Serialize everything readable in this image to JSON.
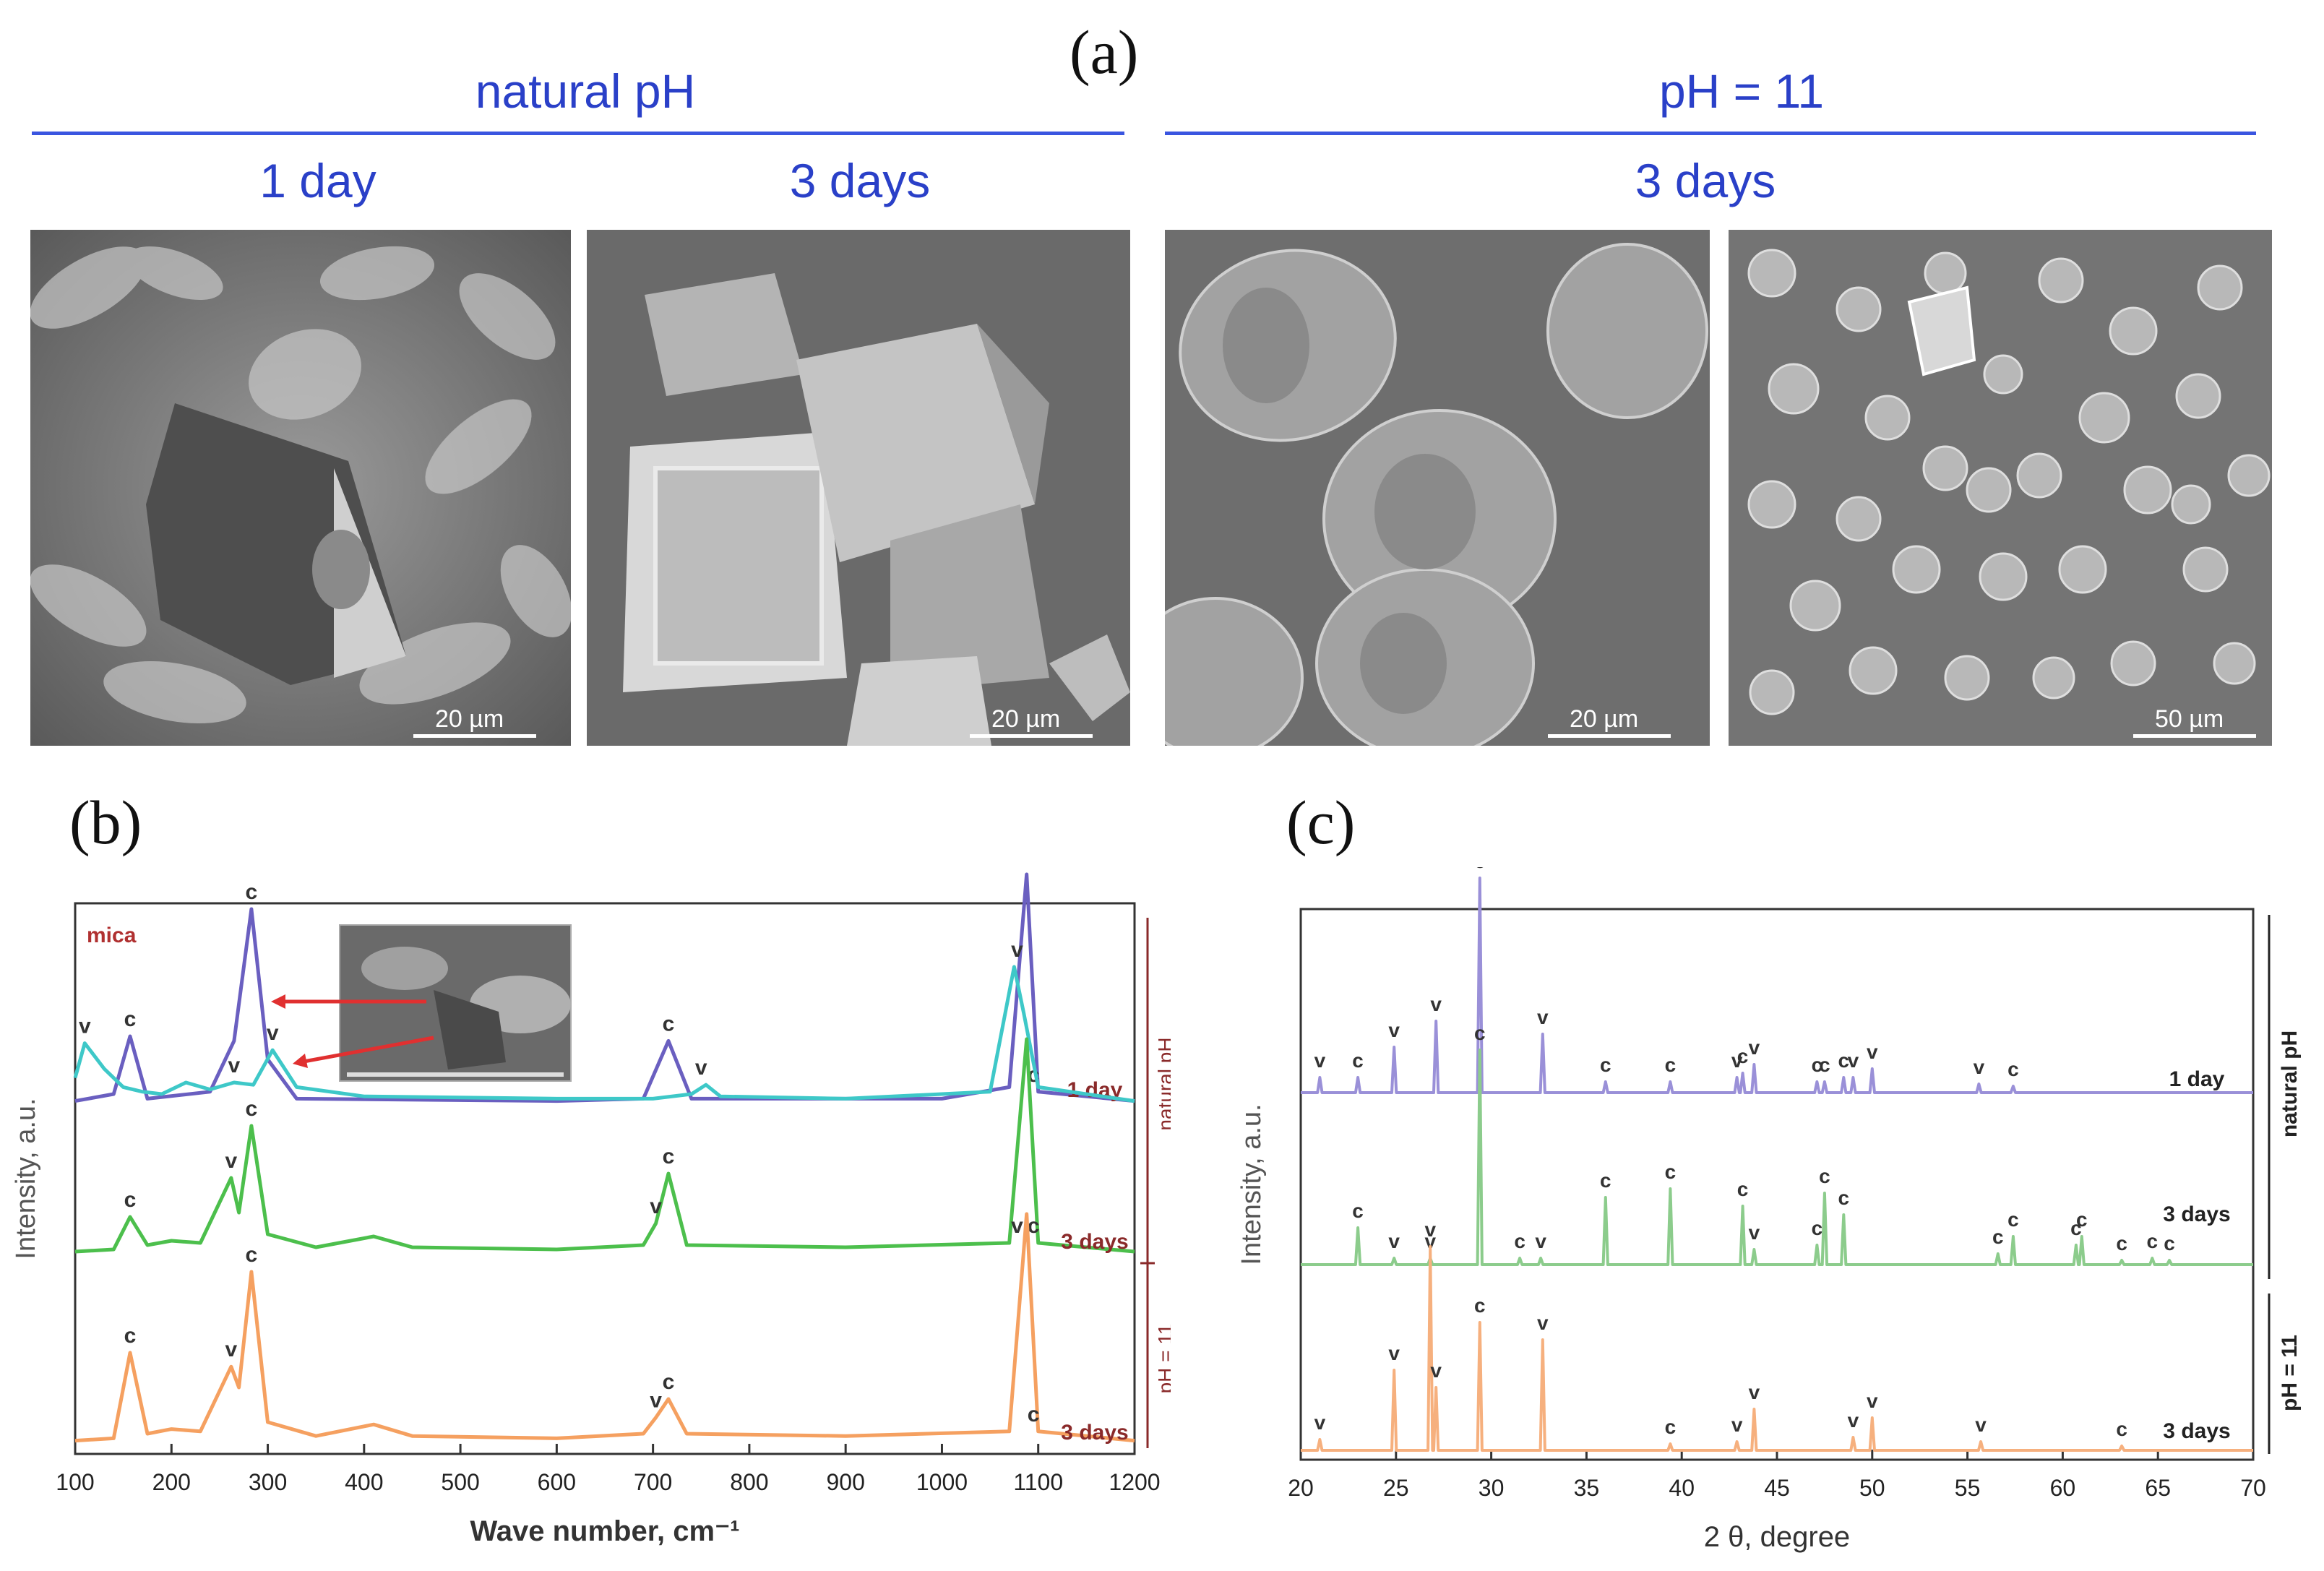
{
  "figure": {
    "label_a": "(a)",
    "label_b": "(b)",
    "label_c": "(c)",
    "group_natural": "natural pH",
    "group_ph11": "pH = 11",
    "col_1day": "1 day",
    "col_3days_a": "3 days",
    "col_3days_b": "3 days",
    "scale_1": "20 µm",
    "scale_2": "20 µm",
    "scale_3": "20 µm",
    "scale_4": "50 µm"
  },
  "chart_data": [
    {
      "type": "line",
      "panel": "(b)",
      "xlabel": "Wave number, cm⁻¹",
      "ylabel": "Intensity, a.u.",
      "xlim": [
        100,
        1200
      ],
      "xticks": [
        100,
        200,
        300,
        400,
        500,
        600,
        700,
        800,
        900,
        1000,
        1100,
        1200
      ],
      "inset_label": "mica",
      "group_labels": [
        "natural pH",
        "pH = 11"
      ],
      "series": [
        {
          "name": "1 day",
          "color": "#6a5fc0",
          "x": [
            100,
            140,
            157,
            175,
            240,
            265,
            283,
            300,
            330,
            600,
            690,
            716,
            740,
            1000,
            1070,
            1088,
            1100,
            1200
          ],
          "y": [
            0.02,
            0.05,
            0.3,
            0.03,
            0.06,
            0.28,
            0.85,
            0.2,
            0.03,
            0.02,
            0.03,
            0.28,
            0.03,
            0.03,
            0.08,
            1.0,
            0.06,
            0.02
          ],
          "peaks": [
            {
              "x": 157,
              "label": "c"
            },
            {
              "x": 283,
              "label": "c"
            },
            {
              "x": 716,
              "label": "c"
            },
            {
              "x": 1095,
              "label": "c"
            }
          ]
        },
        {
          "name": "1 day",
          "color": "#3ec8c8",
          "x": [
            100,
            110,
            130,
            150,
            170,
            190,
            215,
            240,
            265,
            285,
            305,
            330,
            400,
            600,
            700,
            740,
            755,
            770,
            900,
            1050,
            1075,
            1085,
            1100,
            1200
          ],
          "y": [
            0.12,
            0.27,
            0.16,
            0.08,
            0.06,
            0.05,
            0.1,
            0.07,
            0.1,
            0.09,
            0.24,
            0.08,
            0.04,
            0.03,
            0.03,
            0.05,
            0.09,
            0.04,
            0.03,
            0.06,
            0.6,
            0.4,
            0.08,
            0.02
          ],
          "peaks": [
            {
              "x": 110,
              "label": "v"
            },
            {
              "x": 265,
              "label": "v"
            },
            {
              "x": 305,
              "label": "v"
            },
            {
              "x": 750,
              "label": "v"
            },
            {
              "x": 1078,
              "label": "v"
            }
          ]
        },
        {
          "name": "3 days",
          "color": "#4cbf4c",
          "x": [
            100,
            140,
            157,
            175,
            200,
            230,
            262,
            270,
            283,
            300,
            350,
            410,
            450,
            600,
            690,
            703,
            716,
            735,
            900,
            1070,
            1088,
            1100,
            1200
          ],
          "y": [
            0.02,
            0.03,
            0.18,
            0.05,
            0.07,
            0.06,
            0.36,
            0.2,
            0.6,
            0.1,
            0.04,
            0.09,
            0.04,
            0.03,
            0.05,
            0.15,
            0.38,
            0.05,
            0.04,
            0.06,
            1.0,
            0.06,
            0.02
          ],
          "peaks": [
            {
              "x": 157,
              "label": "c"
            },
            {
              "x": 262,
              "label": "v"
            },
            {
              "x": 283,
              "label": "c"
            },
            {
              "x": 703,
              "label": "v"
            },
            {
              "x": 716,
              "label": "c"
            },
            {
              "x": 1078,
              "label": "v"
            },
            {
              "x": 1095,
              "label": "c"
            }
          ]
        },
        {
          "name": "3 days",
          "color": "#f5a060",
          "x": [
            100,
            140,
            157,
            175,
            200,
            230,
            262,
            270,
            283,
            300,
            350,
            410,
            450,
            600,
            690,
            703,
            716,
            735,
            900,
            1070,
            1088,
            1100,
            1200
          ],
          "y": [
            0.02,
            0.03,
            0.4,
            0.05,
            0.07,
            0.06,
            0.34,
            0.25,
            0.75,
            0.1,
            0.04,
            0.09,
            0.04,
            0.03,
            0.05,
            0.12,
            0.2,
            0.05,
            0.04,
            0.06,
            1.0,
            0.06,
            0.02
          ],
          "peaks": [
            {
              "x": 157,
              "label": "c"
            },
            {
              "x": 262,
              "label": "v"
            },
            {
              "x": 283,
              "label": "c"
            },
            {
              "x": 703,
              "label": "v"
            },
            {
              "x": 716,
              "label": "c"
            },
            {
              "x": 1095,
              "label": "c"
            }
          ]
        }
      ]
    },
    {
      "type": "line",
      "panel": "(c)",
      "xlabel": "2 θ, degree",
      "ylabel": "Intensity, a.u.",
      "xlim": [
        20,
        70
      ],
      "xticks": [
        20,
        25,
        30,
        35,
        40,
        45,
        50,
        55,
        60,
        65,
        70
      ],
      "group_labels": [
        "natural pH",
        "pH = 11"
      ],
      "series": [
        {
          "name": "1 day",
          "color": "#9a90d8",
          "peaks": [
            {
              "x": 21.0,
              "h": 0.08,
              "label": "v"
            },
            {
              "x": 23.0,
              "h": 0.08,
              "label": "c"
            },
            {
              "x": 24.9,
              "h": 0.22,
              "label": "v"
            },
            {
              "x": 27.1,
              "h": 0.34,
              "label": "v"
            },
            {
              "x": 29.4,
              "h": 1.0,
              "label": "c"
            },
            {
              "x": 32.7,
              "h": 0.28,
              "label": "v"
            },
            {
              "x": 36.0,
              "h": 0.06,
              "label": "c"
            },
            {
              "x": 39.4,
              "h": 0.06,
              "label": "c"
            },
            {
              "x": 42.9,
              "h": 0.08,
              "label": "v"
            },
            {
              "x": 43.2,
              "h": 0.1,
              "label": "c"
            },
            {
              "x": 43.8,
              "h": 0.14,
              "label": "v"
            },
            {
              "x": 47.1,
              "h": 0.06,
              "label": "c"
            },
            {
              "x": 47.5,
              "h": 0.06,
              "label": "c"
            },
            {
              "x": 48.5,
              "h": 0.08,
              "label": "c"
            },
            {
              "x": 49.0,
              "h": 0.08,
              "label": "v"
            },
            {
              "x": 50.0,
              "h": 0.12,
              "label": "v"
            },
            {
              "x": 55.6,
              "h": 0.05,
              "label": "v"
            },
            {
              "x": 57.4,
              "h": 0.04,
              "label": "c"
            }
          ]
        },
        {
          "name": "3 days",
          "color": "#8ccc8c",
          "peaks": [
            {
              "x": 23.0,
              "h": 0.18,
              "label": "c"
            },
            {
              "x": 24.9,
              "h": 0.04,
              "label": "v"
            },
            {
              "x": 26.8,
              "h": 0.04,
              "label": "v"
            },
            {
              "x": 29.4,
              "h": 1.0,
              "label": "c"
            },
            {
              "x": 31.5,
              "h": 0.04,
              "label": "c"
            },
            {
              "x": 32.6,
              "h": 0.04,
              "label": "v"
            },
            {
              "x": 36.0,
              "h": 0.32,
              "label": "c"
            },
            {
              "x": 39.4,
              "h": 0.36,
              "label": "c"
            },
            {
              "x": 43.2,
              "h": 0.28,
              "label": "c"
            },
            {
              "x": 43.8,
              "h": 0.08,
              "label": "v"
            },
            {
              "x": 47.1,
              "h": 0.1,
              "label": "c"
            },
            {
              "x": 47.5,
              "h": 0.34,
              "label": "c"
            },
            {
              "x": 48.5,
              "h": 0.24,
              "label": "c"
            },
            {
              "x": 56.6,
              "h": 0.06,
              "label": "c"
            },
            {
              "x": 57.4,
              "h": 0.14,
              "label": "c"
            },
            {
              "x": 60.7,
              "h": 0.1,
              "label": "c"
            },
            {
              "x": 61.0,
              "h": 0.14,
              "label": "c"
            },
            {
              "x": 63.1,
              "h": 0.03,
              "label": "c"
            },
            {
              "x": 64.7,
              "h": 0.04,
              "label": "c"
            },
            {
              "x": 65.6,
              "h": 0.03,
              "label": "c"
            }
          ]
        },
        {
          "name": "3 days",
          "color": "#f6b07e",
          "peaks": [
            {
              "x": 21.0,
              "h": 0.06,
              "label": "v"
            },
            {
              "x": 24.9,
              "h": 0.38,
              "label": "v"
            },
            {
              "x": 26.8,
              "h": 0.95,
              "label": "v"
            },
            {
              "x": 27.1,
              "h": 0.3,
              "label": "v"
            },
            {
              "x": 29.4,
              "h": 0.6,
              "label": "c"
            },
            {
              "x": 32.7,
              "h": 0.52,
              "label": "v"
            },
            {
              "x": 39.4,
              "h": 0.04,
              "label": "c"
            },
            {
              "x": 42.9,
              "h": 0.05,
              "label": "v"
            },
            {
              "x": 43.8,
              "h": 0.2,
              "label": "v"
            },
            {
              "x": 49.0,
              "h": 0.07,
              "label": "v"
            },
            {
              "x": 50.0,
              "h": 0.16,
              "label": "v"
            },
            {
              "x": 55.7,
              "h": 0.05,
              "label": "v"
            },
            {
              "x": 63.1,
              "h": 0.03,
              "label": "c"
            }
          ]
        }
      ]
    }
  ]
}
